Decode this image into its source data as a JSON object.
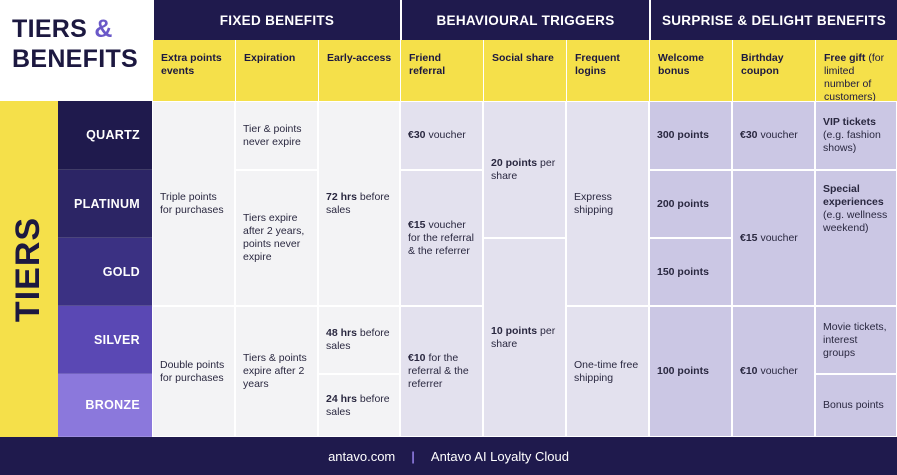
{
  "header": {
    "title_line1": "TIERS",
    "ampersand": "&",
    "title_line2": "BENEFITS"
  },
  "groups": [
    "FIXED BENEFITS",
    "BEHAVIOURAL TRIGGERS",
    "SURPRISE & DELIGHT BENEFITS"
  ],
  "columns": [
    {
      "name": "Extra points events"
    },
    {
      "name": "Expiration"
    },
    {
      "name": "Early-access"
    },
    {
      "name": "Friend referral"
    },
    {
      "name": "Social share"
    },
    {
      "name": "Frequent logins"
    },
    {
      "name": "Welcome bonus"
    },
    {
      "name": "Birthday coupon"
    },
    {
      "name": "Free gift",
      "note": "(for limited number of customers)"
    }
  ],
  "side_label": "TIERS",
  "tiers": [
    "QUARTZ",
    "PLATINUM",
    "GOLD",
    "SILVER",
    "BRONZE"
  ],
  "cells": [
    [
      {
        "text": "Triple points for purchases"
      },
      {
        "text": "Double points for purchases"
      }
    ],
    [
      {
        "text": "Tier & points never expire"
      },
      {
        "text": "Tiers expire after 2 years, points never expire"
      },
      {
        "text": "Tiers & points expire after 2 years"
      }
    ],
    [
      {
        "strong": "72 hrs",
        "text": "before sales"
      },
      {
        "strong": "48 hrs",
        "text": "before sales"
      },
      {
        "strong": "24 hrs",
        "text": "before sales"
      }
    ],
    [
      {
        "strong": "€30",
        "text": "voucher"
      },
      {
        "strong": "€15",
        "text": "voucher for the referral & the referrer"
      },
      {
        "strong": "€10",
        "text": "for the referral & the referrer"
      }
    ],
    [
      {
        "strong": "20 points",
        "text": "per share"
      },
      {
        "strong": "10 points",
        "text": "per share"
      }
    ],
    [
      {
        "text": "Express shipping"
      },
      {
        "text": "One-time free shipping"
      }
    ],
    [
      {
        "strong": "300 points"
      },
      {
        "strong": "200 points"
      },
      {
        "strong": "150 points"
      },
      {
        "strong": "100 points"
      }
    ],
    [
      {
        "strong": "€30",
        "text": "voucher"
      },
      {
        "strong": "€15",
        "text": "voucher"
      },
      {
        "strong": "€10",
        "text": "voucher"
      }
    ],
    [
      {
        "strong": "VIP tickets",
        "text": "(e.g. fashion shows)"
      },
      {
        "strong": "Special experiences",
        "text": "(e.g. wellness weekend)"
      },
      {
        "text": "Movie tickets, interest groups"
      },
      {
        "text": "Bonus points"
      }
    ]
  ],
  "footer": {
    "site": "antavo.com",
    "separator": "|",
    "product": "Antavo AI Loyalty Cloud"
  }
}
